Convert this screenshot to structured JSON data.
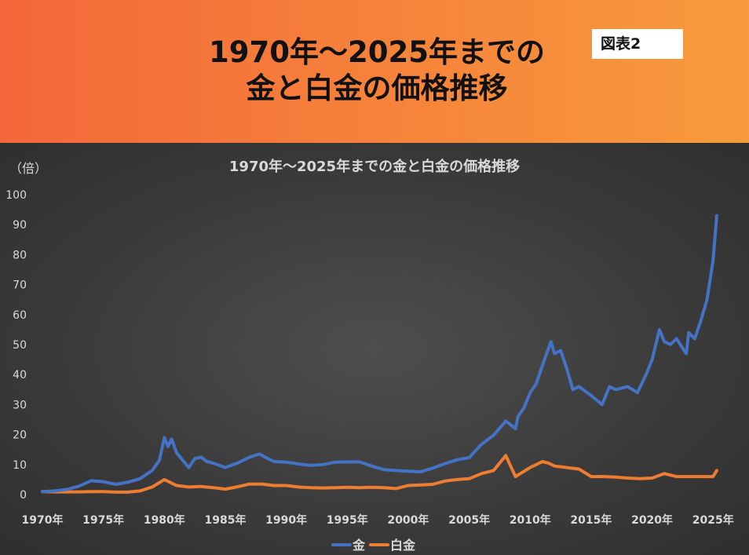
{
  "banner": {
    "title_line1": "1970年～2025年までの",
    "title_line2": "金と白金の価格推移",
    "figure_label": "図表2",
    "background_color": "#f57f3a"
  },
  "chart_data": {
    "type": "line",
    "title": "1970年～2025年までの金と白金の価格推移",
    "y_unit": "（倍）",
    "xlabel": "",
    "ylabel": "",
    "xlim": [
      1970,
      2025.5
    ],
    "ylim": [
      0,
      100
    ],
    "y_ticks": [
      0,
      10,
      20,
      30,
      40,
      50,
      60,
      70,
      80,
      90,
      100
    ],
    "x_ticks": [
      1970,
      1975,
      1980,
      1985,
      1990,
      1995,
      2000,
      2005,
      2010,
      2015,
      2020,
      2025
    ],
    "x_tick_labels": [
      "1970年",
      "1975年",
      "1980年",
      "1985年",
      "1990年",
      "1995年",
      "2000年",
      "2005年",
      "2010年",
      "2015年",
      "2020年",
      "2025年"
    ],
    "grid": false,
    "legend_position": "bottom",
    "series": [
      {
        "name": "金",
        "color": "#4472c4",
        "x": [
          1970,
          1971,
          1972,
          1973,
          1974,
          1975,
          1976,
          1977,
          1978,
          1979,
          1979.6,
          1980.0,
          1980.3,
          1980.6,
          1981.0,
          1981.5,
          1982.0,
          1982.5,
          1983.0,
          1983.5,
          1984.0,
          1985.0,
          1986.0,
          1987.0,
          1987.8,
          1988.5,
          1989.0,
          1990.0,
          1991.0,
          1992.0,
          1993.0,
          1994.0,
          1995.0,
          1996.0,
          1997.0,
          1998.0,
          1999.0,
          2000.0,
          2001.0,
          2002.0,
          2003.0,
          2004.0,
          2005.0,
          2006.0,
          2007.0,
          2008.0,
          2008.8,
          2009.0,
          2009.5,
          2010.0,
          2010.5,
          2011.0,
          2011.7,
          2012.0,
          2012.5,
          2013.0,
          2013.5,
          2014.0,
          2015.0,
          2015.9,
          2016.5,
          2017.0,
          2018.0,
          2018.8,
          2019.5,
          2020.0,
          2020.6,
          2021.0,
          2021.5,
          2022.0,
          2022.8,
          2023.0,
          2023.5,
          2024.0,
          2024.5,
          2025.0,
          2025.3
        ],
        "values": [
          1.0,
          1.2,
          1.7,
          2.8,
          4.6,
          4.3,
          3.4,
          4.1,
          5.3,
          8.0,
          11.5,
          19.0,
          16.0,
          18.5,
          14.0,
          11.5,
          9.0,
          12.0,
          12.5,
          11.0,
          10.5,
          9.0,
          10.5,
          12.5,
          13.5,
          12.0,
          11.0,
          10.8,
          10.2,
          9.7,
          10.0,
          10.8,
          10.9,
          10.9,
          9.5,
          8.3,
          8.0,
          7.8,
          7.6,
          8.8,
          10.3,
          11.6,
          12.3,
          16.7,
          19.8,
          24.5,
          22.0,
          26.0,
          29.0,
          34.0,
          37.0,
          43.0,
          51.0,
          47.0,
          48.0,
          42.0,
          35.0,
          36.0,
          33.0,
          30.0,
          36.0,
          35.0,
          36.0,
          34.0,
          40.0,
          45.0,
          55.0,
          51.0,
          50.0,
          52.0,
          47.0,
          54.0,
          52.0,
          58.0,
          65.0,
          78.0,
          93.0
        ]
      },
      {
        "name": "白金",
        "color": "#ed7d31",
        "x": [
          1970,
          1971,
          1972,
          1973,
          1974,
          1975,
          1976,
          1977,
          1978,
          1979,
          1980.0,
          1980.5,
          1981.0,
          1982.0,
          1983.0,
          1984.0,
          1985.0,
          1986.0,
          1987.0,
          1988.0,
          1989.0,
          1990.0,
          1991.0,
          1992.0,
          1993.0,
          1994.0,
          1995.0,
          1996.0,
          1997.0,
          1998.0,
          1999.0,
          2000.0,
          2001.0,
          2002.0,
          2003.0,
          2004.0,
          2005.0,
          2006.0,
          2007.0,
          2008.0,
          2008.8,
          2009.0,
          2010.0,
          2011.0,
          2011.5,
          2012.0,
          2013.0,
          2014.0,
          2015.0,
          2016.0,
          2017.0,
          2018.0,
          2019.0,
          2020.0,
          2021.0,
          2022.0,
          2023.0,
          2024.0,
          2025.0,
          2025.3
        ],
        "values": [
          1.0,
          0.9,
          0.9,
          0.9,
          1.0,
          1.0,
          0.8,
          0.8,
          1.2,
          2.5,
          5.0,
          4.0,
          3.0,
          2.5,
          2.7,
          2.3,
          1.8,
          2.6,
          3.5,
          3.5,
          3.0,
          3.0,
          2.5,
          2.3,
          2.2,
          2.3,
          2.4,
          2.3,
          2.4,
          2.3,
          2.0,
          3.0,
          3.2,
          3.4,
          4.5,
          5.0,
          5.3,
          7.0,
          8.0,
          13.0,
          6.0,
          6.5,
          9.0,
          11.0,
          10.5,
          9.5,
          9.0,
          8.5,
          6.0,
          6.0,
          5.8,
          5.5,
          5.3,
          5.5,
          7.0,
          6.0,
          6.0,
          6.0,
          6.0,
          8.0
        ]
      }
    ]
  }
}
